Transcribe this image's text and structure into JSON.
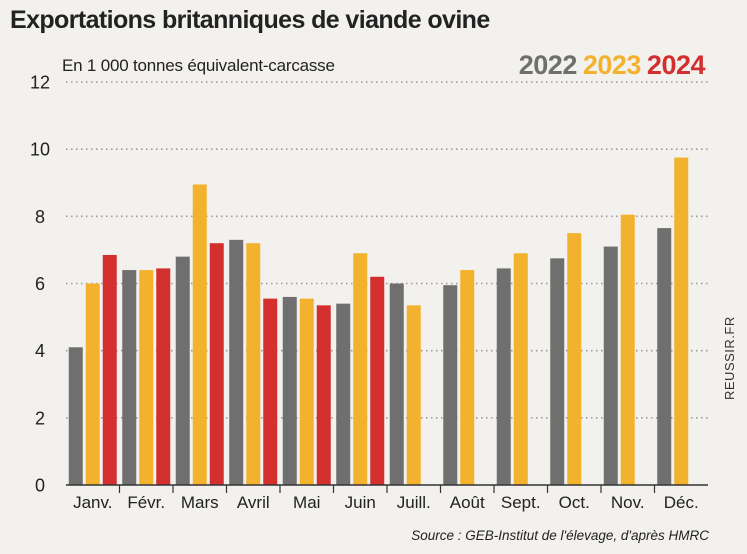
{
  "chart_data": {
    "type": "bar",
    "title": "Exportations britanniques de viande ovine",
    "subtitle": "En 1 000 tonnes équivalent-carcasse",
    "categories": [
      "Janv.",
      "Févr.",
      "Mars",
      "Avril",
      "Mai",
      "Juin",
      "Juill.",
      "Août",
      "Sept.",
      "Oct.",
      "Nov.",
      "Déc."
    ],
    "series": [
      {
        "name": "2022",
        "color": "#6f6f6f",
        "values": [
          4.1,
          6.4,
          6.8,
          7.3,
          5.6,
          5.4,
          6.0,
          5.95,
          6.45,
          6.75,
          7.1,
          7.65
        ]
      },
      {
        "name": "2023",
        "color": "#f3b22e",
        "values": [
          6.0,
          6.4,
          8.95,
          7.2,
          5.55,
          6.9,
          5.35,
          6.4,
          6.9,
          7.5,
          8.05,
          9.75
        ]
      },
      {
        "name": "2024",
        "color": "#d32f2f",
        "values": [
          6.85,
          6.45,
          7.2,
          5.55,
          5.35,
          6.2,
          null,
          null,
          null,
          null,
          null,
          null
        ]
      }
    ],
    "ylim": [
      0,
      12
    ],
    "yticks": [
      0,
      2,
      4,
      6,
      8,
      10,
      12
    ],
    "grid": true,
    "xlabel": "",
    "ylabel": "",
    "source": "Source : GEB-Institut de l'élevage, d'après HMRC",
    "watermark": "REUSSIR.FR"
  }
}
